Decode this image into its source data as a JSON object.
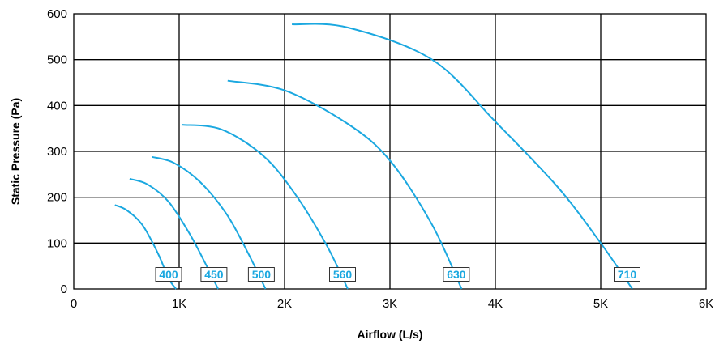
{
  "chart_data": {
    "type": "line",
    "title": "",
    "xlabel": "Airflow (L/s)",
    "ylabel": "Static Pressure (Pa)",
    "xlim": [
      0,
      6000
    ],
    "ylim": [
      0,
      600
    ],
    "x_ticks": [
      0,
      1000,
      2000,
      3000,
      4000,
      5000,
      6000
    ],
    "x_tick_labels": [
      "0",
      "1K",
      "2K",
      "3K",
      "4K",
      "5K",
      "6K"
    ],
    "y_ticks": [
      0,
      100,
      200,
      300,
      400,
      500,
      600
    ],
    "y_tick_labels": [
      "0",
      "100",
      "200",
      "300",
      "400",
      "500",
      "600"
    ],
    "grid": true,
    "series_color": "#1ba8e0",
    "series": [
      {
        "name": "400",
        "x": [
          390,
          500,
          650,
          800,
          900,
          970
        ],
        "y": [
          183,
          172,
          140,
          77,
          23,
          0
        ]
      },
      {
        "name": "450",
        "x": [
          530,
          700,
          900,
          1100,
          1250,
          1370
        ],
        "y": [
          240,
          228,
          190,
          120,
          55,
          0
        ]
      },
      {
        "name": "500",
        "x": [
          740,
          950,
          1200,
          1450,
          1650,
          1820
        ],
        "y": [
          288,
          275,
          233,
          163,
          80,
          0
        ]
      },
      {
        "name": "560",
        "x": [
          1030,
          1400,
          1800,
          2100,
          2400,
          2600
        ],
        "y": [
          358,
          348,
          290,
          207,
          95,
          0
        ]
      },
      {
        "name": "630",
        "x": [
          1460,
          2000,
          2600,
          3000,
          3400,
          3680
        ],
        "y": [
          454,
          433,
          360,
          280,
          140,
          0
        ]
      },
      {
        "name": "710",
        "x": [
          2070,
          2600,
          3400,
          4000,
          4600,
          5000,
          5300
        ],
        "y": [
          577,
          570,
          500,
          365,
          220,
          100,
          0
        ]
      }
    ],
    "label_positions_x": [
      900,
      1330,
      1780,
      2550,
      3630,
      5250
    ]
  }
}
